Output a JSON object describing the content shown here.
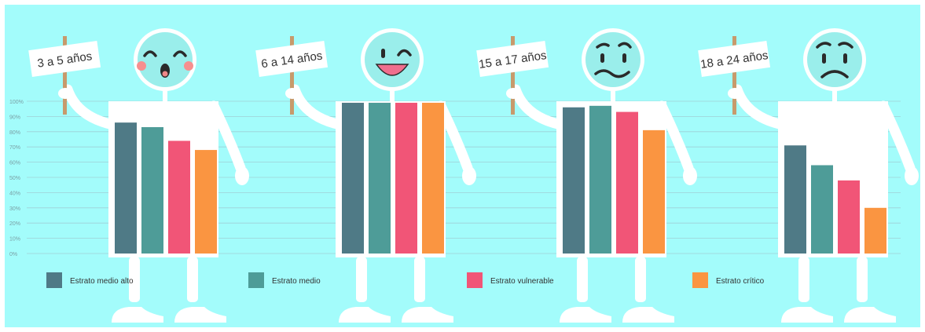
{
  "background_color": "#A3FCFB",
  "chart_data": {
    "type": "bar",
    "groups": [
      {
        "sign": "3 a 5 años",
        "face": "surprised-face-icon",
        "values": [
          86,
          83,
          74,
          68
        ]
      },
      {
        "sign": "6 a 14 años",
        "face": "winking-face-icon",
        "values": [
          99,
          99,
          99,
          99
        ]
      },
      {
        "sign": "15 a 17 años",
        "face": "doubtful-face-icon",
        "values": [
          96,
          97,
          93,
          81
        ]
      },
      {
        "sign": "18 a 24 años",
        "face": "sad-face-icon",
        "values": [
          71,
          58,
          48,
          30
        ]
      }
    ],
    "series": [
      {
        "name": "Estrato medio alto",
        "color": "#4F7A86"
      },
      {
        "name": "Estrato medio",
        "color": "#4E9C98"
      },
      {
        "name": "Estrato vulnerable",
        "color": "#F15577"
      },
      {
        "name": "Estrato crítico",
        "color": "#FA9541"
      }
    ],
    "y_ticks": [
      "100%",
      "90%",
      "80%",
      "70%",
      "60%",
      "50%",
      "40%",
      "30%",
      "20%",
      "10%",
      "0%"
    ],
    "ylim": [
      0,
      100
    ],
    "grid": true,
    "legend_position": "bottom"
  }
}
